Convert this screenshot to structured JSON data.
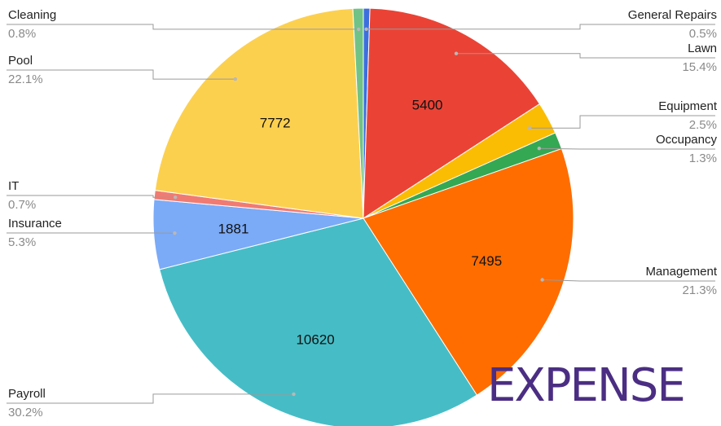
{
  "chart_data": {
    "type": "pie",
    "slices": [
      {
        "name": "General Repairs",
        "value": 176,
        "pct": "0.5%",
        "color": "#3d6fdc",
        "value_label": ""
      },
      {
        "name": "Lawn",
        "value": 5400,
        "pct": "15.4%",
        "color": "#ea4335",
        "value_label": "5400"
      },
      {
        "name": "Equipment",
        "value": 877,
        "pct": "2.5%",
        "color": "#fbbc04",
        "value_label": ""
      },
      {
        "name": "Occupancy",
        "value": 456,
        "pct": "1.3%",
        "color": "#34a853",
        "value_label": ""
      },
      {
        "name": "Management",
        "value": 7495,
        "pct": "21.3%",
        "color": "#ff6d01",
        "value_label": "7495"
      },
      {
        "name": "Payroll",
        "value": 10620,
        "pct": "30.2%",
        "color": "#46bdc6",
        "value_label": "10620"
      },
      {
        "name": "Insurance",
        "value": 1881,
        "pct": "5.3%",
        "color": "#7baaf7",
        "value_label": "1881"
      },
      {
        "name": "IT",
        "value": 246,
        "pct": "0.7%",
        "color": "#f07b72",
        "value_label": ""
      },
      {
        "name": "Pool",
        "value": 7772,
        "pct": "22.1%",
        "color": "#fcd04f",
        "value_label": "7772"
      },
      {
        "name": "Cleaning",
        "value": 281,
        "pct": "0.8%",
        "color": "#71c287",
        "value_label": ""
      }
    ],
    "legend": "labels beside slices with leader lines"
  },
  "watermark": {
    "text": "EXPENSE",
    "color": "#4b2e83"
  }
}
